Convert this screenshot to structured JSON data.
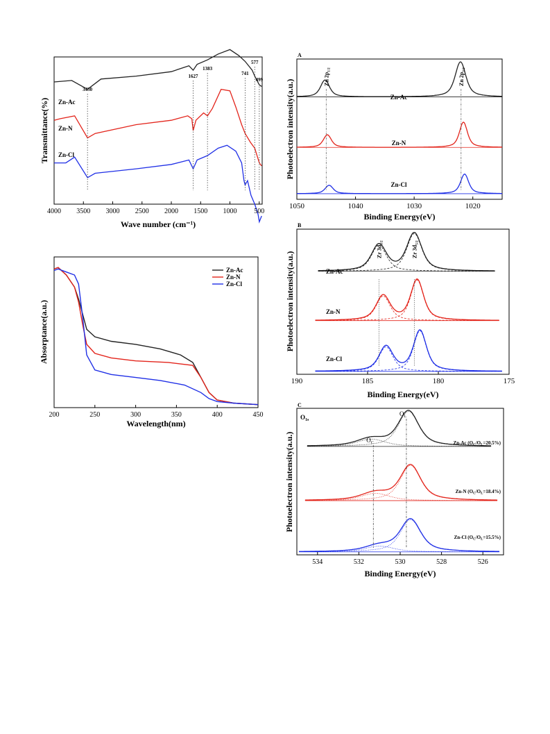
{
  "chart_data": [
    {
      "id": "ftir",
      "type": "line",
      "xlabel": "Wave number (cm⁻¹)",
      "ylabel": "Transmittance(%)",
      "xlim": [
        4000,
        450
      ],
      "x_ticks": [
        4000,
        3500,
        3000,
        2500,
        2000,
        1500,
        1000,
        500
      ],
      "peak_labels": [
        {
          "x": 3430,
          "label": "3430"
        },
        {
          "x": 1627,
          "label": "1627"
        },
        {
          "x": 1383,
          "label": "1383"
        },
        {
          "x": 741,
          "label": "741"
        },
        {
          "x": 577,
          "label": "577"
        },
        {
          "x": 499,
          "label": "499"
        }
      ],
      "series": [
        {
          "name": "Zn-Ac",
          "color": "#222222",
          "offset": 0.83,
          "points": [
            [
              4000,
              0
            ],
            [
              3700,
              0.01
            ],
            [
              3430,
              -0.05
            ],
            [
              3200,
              0.02
            ],
            [
              2600,
              0.04
            ],
            [
              2000,
              0.07
            ],
            [
              1700,
              0.11
            ],
            [
              1627,
              0.08
            ],
            [
              1560,
              0.12
            ],
            [
              1383,
              0.15
            ],
            [
              1200,
              0.19
            ],
            [
              1000,
              0.22
            ],
            [
              850,
              0.18
            ],
            [
              741,
              0.14
            ],
            [
              620,
              0.08
            ],
            [
              577,
              0.04
            ],
            [
              499,
              -0.02
            ],
            [
              460,
              -0.03
            ]
          ]
        },
        {
          "name": "Zn-N",
          "color": "#e3241b",
          "offset": 0.52,
          "points": [
            [
              4000,
              0.05
            ],
            [
              3900,
              0.06
            ],
            [
              3650,
              0.08
            ],
            [
              3430,
              -0.07
            ],
            [
              3300,
              -0.04
            ],
            [
              2600,
              0.02
            ],
            [
              2000,
              0.05
            ],
            [
              1720,
              0.08
            ],
            [
              1650,
              0.06
            ],
            [
              1627,
              -0.02
            ],
            [
              1580,
              0.05
            ],
            [
              1450,
              0.1
            ],
            [
              1383,
              0.08
            ],
            [
              1300,
              0.13
            ],
            [
              1150,
              0.26
            ],
            [
              1000,
              0.25
            ],
            [
              900,
              0.14
            ],
            [
              800,
              0.02
            ],
            [
              741,
              -0.04
            ],
            [
              650,
              -0.1
            ],
            [
              577,
              -0.14
            ],
            [
              499,
              -0.24
            ],
            [
              460,
              -0.26
            ]
          ]
        },
        {
          "name": "Zn-Cl",
          "color": "#1f2fe6",
          "offset": 0.28,
          "points": [
            [
              4000,
              0
            ],
            [
              3800,
              0
            ],
            [
              3650,
              0.04
            ],
            [
              3430,
              -0.1
            ],
            [
              3300,
              -0.07
            ],
            [
              2600,
              -0.04
            ],
            [
              2000,
              -0.01
            ],
            [
              1700,
              0.02
            ],
            [
              1627,
              -0.04
            ],
            [
              1560,
              0.02
            ],
            [
              1383,
              0.05
            ],
            [
              1200,
              0.1
            ],
            [
              1050,
              0.12
            ],
            [
              900,
              0.08
            ],
            [
              800,
              0.0
            ],
            [
              760,
              -0.12
            ],
            [
              741,
              -0.15
            ],
            [
              700,
              -0.12
            ],
            [
              640,
              -0.22
            ],
            [
              577,
              -0.28
            ],
            [
              520,
              -0.35
            ],
            [
              499,
              -0.4
            ],
            [
              460,
              -0.36
            ]
          ]
        }
      ]
    },
    {
      "id": "uvvis",
      "type": "line",
      "xlabel": "Wavelength(nm)",
      "ylabel": "Absorptance(a.u.)",
      "xlim": [
        200,
        450
      ],
      "x_ticks": [
        200,
        250,
        300,
        350,
        400,
        450
      ],
      "legend_position": "top-right",
      "series": [
        {
          "name": "Zn-Ac",
          "color": "#222222",
          "points": [
            [
              200,
              0.92
            ],
            [
              205,
              0.93
            ],
            [
              215,
              0.88
            ],
            [
              225,
              0.8
            ],
            [
              230,
              0.72
            ],
            [
              235,
              0.62
            ],
            [
              240,
              0.52
            ],
            [
              250,
              0.47
            ],
            [
              270,
              0.44
            ],
            [
              300,
              0.42
            ],
            [
              330,
              0.39
            ],
            [
              355,
              0.35
            ],
            [
              370,
              0.3
            ],
            [
              380,
              0.2
            ],
            [
              390,
              0.1
            ],
            [
              400,
              0.05
            ],
            [
              420,
              0.03
            ],
            [
              450,
              0.02
            ]
          ]
        },
        {
          "name": "Zn-N",
          "color": "#e3241b",
          "points": [
            [
              200,
              0.92
            ],
            [
              205,
              0.93
            ],
            [
              215,
              0.88
            ],
            [
              225,
              0.8
            ],
            [
              230,
              0.7
            ],
            [
              235,
              0.55
            ],
            [
              240,
              0.42
            ],
            [
              250,
              0.36
            ],
            [
              270,
              0.33
            ],
            [
              300,
              0.31
            ],
            [
              340,
              0.3
            ],
            [
              370,
              0.28
            ],
            [
              380,
              0.2
            ],
            [
              390,
              0.1
            ],
            [
              400,
              0.05
            ],
            [
              420,
              0.03
            ],
            [
              450,
              0.02
            ]
          ]
        },
        {
          "name": "Zn-Cl",
          "color": "#1f2fe6",
          "points": [
            [
              200,
              0.91
            ],
            [
              205,
              0.92
            ],
            [
              215,
              0.9
            ],
            [
              225,
              0.88
            ],
            [
              230,
              0.82
            ],
            [
              235,
              0.6
            ],
            [
              240,
              0.35
            ],
            [
              250,
              0.25
            ],
            [
              270,
              0.22
            ],
            [
              300,
              0.2
            ],
            [
              330,
              0.18
            ],
            [
              360,
              0.15
            ],
            [
              380,
              0.1
            ],
            [
              390,
              0.06
            ],
            [
              400,
              0.04
            ],
            [
              420,
              0.03
            ],
            [
              450,
              0.02
            ]
          ]
        }
      ]
    },
    {
      "id": "xps-zn",
      "type": "line",
      "panel": "A",
      "xlabel": "Binding Energy(eV)",
      "ylabel": "Photoelectron intensity(a.u.)",
      "xlim": [
        1050,
        1015
      ],
      "x_ticks": [
        1050,
        1040,
        1030,
        1020
      ],
      "peak_labels": [
        {
          "x": 1045,
          "label": "Zn 2p",
          "sub": "1/2"
        },
        {
          "x": 1022,
          "label": "Zn 2p",
          "sub": "3/2"
        }
      ],
      "series": [
        {
          "name": "Zn-Ac",
          "color": "#222222",
          "base": 0.73,
          "peaks": [
            [
              1045.2,
              0.12,
              1.0
            ],
            [
              1022.1,
              0.25,
              1.2
            ]
          ]
        },
        {
          "name": "Zn-N",
          "color": "#e3241b",
          "base": 0.37,
          "peaks": [
            [
              1044.8,
              0.09,
              0.9
            ],
            [
              1021.6,
              0.18,
              0.9
            ]
          ]
        },
        {
          "name": "Zn-Cl",
          "color": "#1f2fe6",
          "base": 0.04,
          "peaks": [
            [
              1044.5,
              0.06,
              0.9
            ],
            [
              1021.4,
              0.14,
              0.9
            ]
          ]
        }
      ]
    },
    {
      "id": "xps-zr",
      "type": "line",
      "panel": "B",
      "xlabel": "Binding Energy(eV)",
      "ylabel": "Photoelectron intensity(a.u.)",
      "xlim": [
        190,
        175
      ],
      "x_ticks": [
        190,
        185,
        180,
        175
      ],
      "peak_labels": [
        {
          "x": 184.2,
          "label": "Zr 3d",
          "sub": "3/2"
        },
        {
          "x": 181.7,
          "label": "Zr 3d",
          "sub": "5/2"
        }
      ],
      "series": [
        {
          "name": "Zn-Ac",
          "color": "#222222",
          "base": 0.71,
          "xrange": [
            188.5,
            176.0
          ],
          "peaks": [
            [
              184.2,
              0.18,
              0.7
            ],
            [
              181.7,
              0.26,
              0.7
            ]
          ]
        },
        {
          "name": "Zn-N",
          "color": "#e3241b",
          "base": 0.37,
          "xrange": [
            188.7,
            175.7
          ],
          "peaks": [
            [
              183.9,
              0.17,
              0.65
            ],
            [
              181.5,
              0.28,
              0.6
            ]
          ]
        },
        {
          "name": "Zn-Cl",
          "color": "#1f2fe6",
          "base": 0.02,
          "xrange": [
            188.7,
            175.5
          ],
          "peaks": [
            [
              183.7,
              0.17,
              0.65
            ],
            [
              181.3,
              0.28,
              0.6
            ]
          ]
        }
      ]
    },
    {
      "id": "xps-o",
      "type": "line",
      "panel": "C",
      "panel_label": "O",
      "panel_label_sub": "1s",
      "xlabel": "Binding Energy(eV)",
      "ylabel": "Photoelectron intensity(a.u.)",
      "xlim": [
        535,
        525
      ],
      "x_ticks": [
        534,
        532,
        530,
        528,
        526
      ],
      "component_labels": [
        {
          "x": 531.3,
          "label": "O",
          "sub": "C"
        },
        {
          "x": 529.7,
          "label": "O",
          "sub": "L"
        }
      ],
      "series": [
        {
          "name": "Zn-Ac",
          "label_main": "Zn-Ac (O",
          "label_sub1": "C",
          "label_mid": "/O",
          "label_sub2": "L",
          "label_end": "=20.5%)",
          "color": "#222222",
          "base": 0.74,
          "xrange": [
            534.5,
            525.6
          ],
          "peaks": [
            [
              531.4,
              0.05,
              0.9
            ],
            [
              529.6,
              0.24,
              0.65
            ]
          ]
        },
        {
          "name": "Zn-N",
          "label_main": "Zn-N (O",
          "label_sub1": "C",
          "label_mid": "/O",
          "label_sub2": "L",
          "label_end": "=18.4%)",
          "color": "#e3241b",
          "base": 0.37,
          "xrange": [
            534.6,
            525.3
          ],
          "peaks": [
            [
              531.2,
              0.05,
              0.9
            ],
            [
              529.5,
              0.24,
              0.65
            ]
          ]
        },
        {
          "name": "Zn-Cl",
          "label_main": "Zn-Cl (O",
          "label_sub1": "C",
          "label_mid": "/O",
          "label_sub2": "L",
          "label_end": "=15.5%)",
          "color": "#1f2fe6",
          "base": 0.02,
          "xrange": [
            534.9,
            525.2
          ],
          "peaks": [
            [
              531.0,
              0.04,
              0.9
            ],
            [
              529.5,
              0.22,
              0.65
            ]
          ]
        }
      ]
    }
  ]
}
